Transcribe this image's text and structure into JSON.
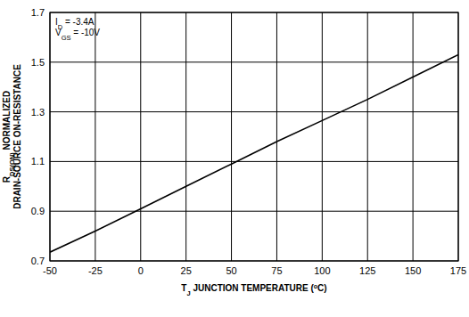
{
  "chart_data": {
    "type": "line",
    "x_label": [
      {
        "text": "T"
      },
      {
        "text": "J",
        "sub": true
      },
      {
        "text": " JUNCTION TEMPERATURE ("
      },
      {
        "text": "o",
        "sup": true
      },
      {
        "text": "C)"
      }
    ],
    "y_label": [
      [
        {
          "text": "R"
        },
        {
          "text": "DS(ON)",
          "sub": true
        },
        {
          "text": " NORMALIZED"
        }
      ],
      [
        {
          "text": "DRAIN-SOURCE ON-RESISTANCE"
        }
      ]
    ],
    "annotations": [
      [
        {
          "text": "I"
        },
        {
          "text": "D",
          "sub": true
        },
        {
          "text": " = -3.4A"
        }
      ],
      [
        {
          "text": "V"
        },
        {
          "text": "GS",
          "sub": true
        },
        {
          "text": " = -10V"
        }
      ]
    ],
    "x": [
      -50,
      -25,
      0,
      25,
      50,
      75,
      100,
      125,
      150,
      175
    ],
    "series": [
      {
        "color": "#000000",
        "values": [
          0.735,
          0.82,
          0.91,
          1.0,
          1.09,
          1.18,
          1.265,
          1.35,
          1.44,
          1.53
        ]
      }
    ],
    "xlim": [
      -50,
      175
    ],
    "ylim": [
      0.7,
      1.7
    ],
    "xticks": [
      -50,
      -25,
      0,
      25,
      50,
      75,
      100,
      125,
      150,
      175
    ],
    "yticks": [
      0.7,
      0.9,
      1.1,
      1.3,
      1.5,
      1.7
    ],
    "grid": true
  }
}
